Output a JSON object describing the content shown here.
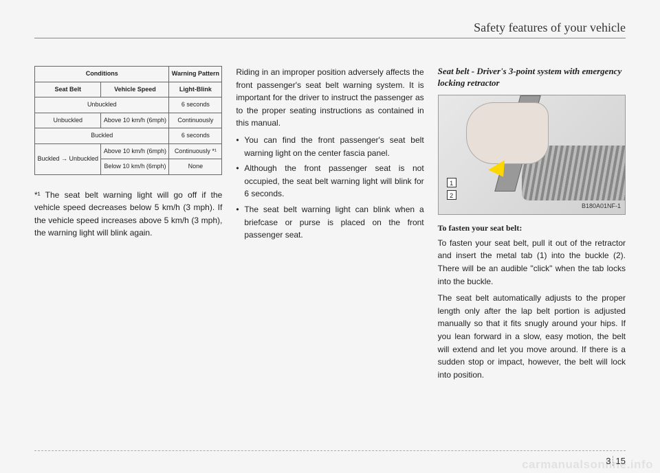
{
  "header": "Safety features of your vehicle",
  "table": {
    "header": {
      "conditions": "Conditions",
      "warning": "Warning Pattern",
      "seatbelt": "Seat Belt",
      "speed": "Vehicle Speed",
      "light": "Light-Blink"
    },
    "rows": [
      {
        "belt": "Unbuckled",
        "speed": "",
        "light": "6 seconds",
        "merge": true
      },
      {
        "belt": "Unbuckled",
        "speed": "Above 10 km/h (6mph)",
        "light": "Continuously"
      },
      {
        "belt": "Buckled",
        "speed": "",
        "light": "6 seconds",
        "merge": true
      },
      {
        "belt": "Buckled → Unbuckled",
        "speed": "Above 10 km/h (6mph)",
        "light": "Continuously *¹",
        "rowspan": 2
      },
      {
        "belt": "",
        "speed": "Below 10 km/h (6mph)",
        "light": "None"
      }
    ]
  },
  "footnote": "*¹ The seat belt warning light will go off if the vehicle speed decreases below 5 km/h (3 mph). If the vehicle speed increases above 5 km/h (3 mph), the warning light will blink again.",
  "col2": {
    "para1": "Riding in an improper position adversely affects the front passenger's seat belt warning system. It is important for the driver to instruct the passenger as to the proper seating instructions as contained in this manual.",
    "bullets": [
      "You can find the front passenger's seat belt warning light on the center fascia panel.",
      "Although the front passenger seat is not occupied, the seat belt warning light will blink for 6 seconds.",
      "The seat belt warning light can blink when a briefcase or purse is placed on the front passenger seat."
    ]
  },
  "col3": {
    "subheading": "Seat belt - Driver's 3-point system with emergency locking retractor",
    "illustration_code": "B180A01NF-1",
    "labels": {
      "one": "1",
      "two": "2"
    },
    "bold": "To fasten your seat belt:",
    "para1": "To fasten your seat belt, pull it out of the retractor and insert the metal tab (1) into the buckle (2). There will be an audible \"click\" when the tab locks into the buckle.",
    "para2": "The seat belt automatically adjusts to the proper length only after the lap belt portion is adjusted manually so that it fits snugly around your hips. If you lean forward in a slow, easy motion, the belt will extend and let you move around. If there is a sudden stop or impact, however, the belt will lock into position."
  },
  "pagenum": {
    "section": "3",
    "page": "15"
  },
  "watermark": "carmanualsonline.info"
}
